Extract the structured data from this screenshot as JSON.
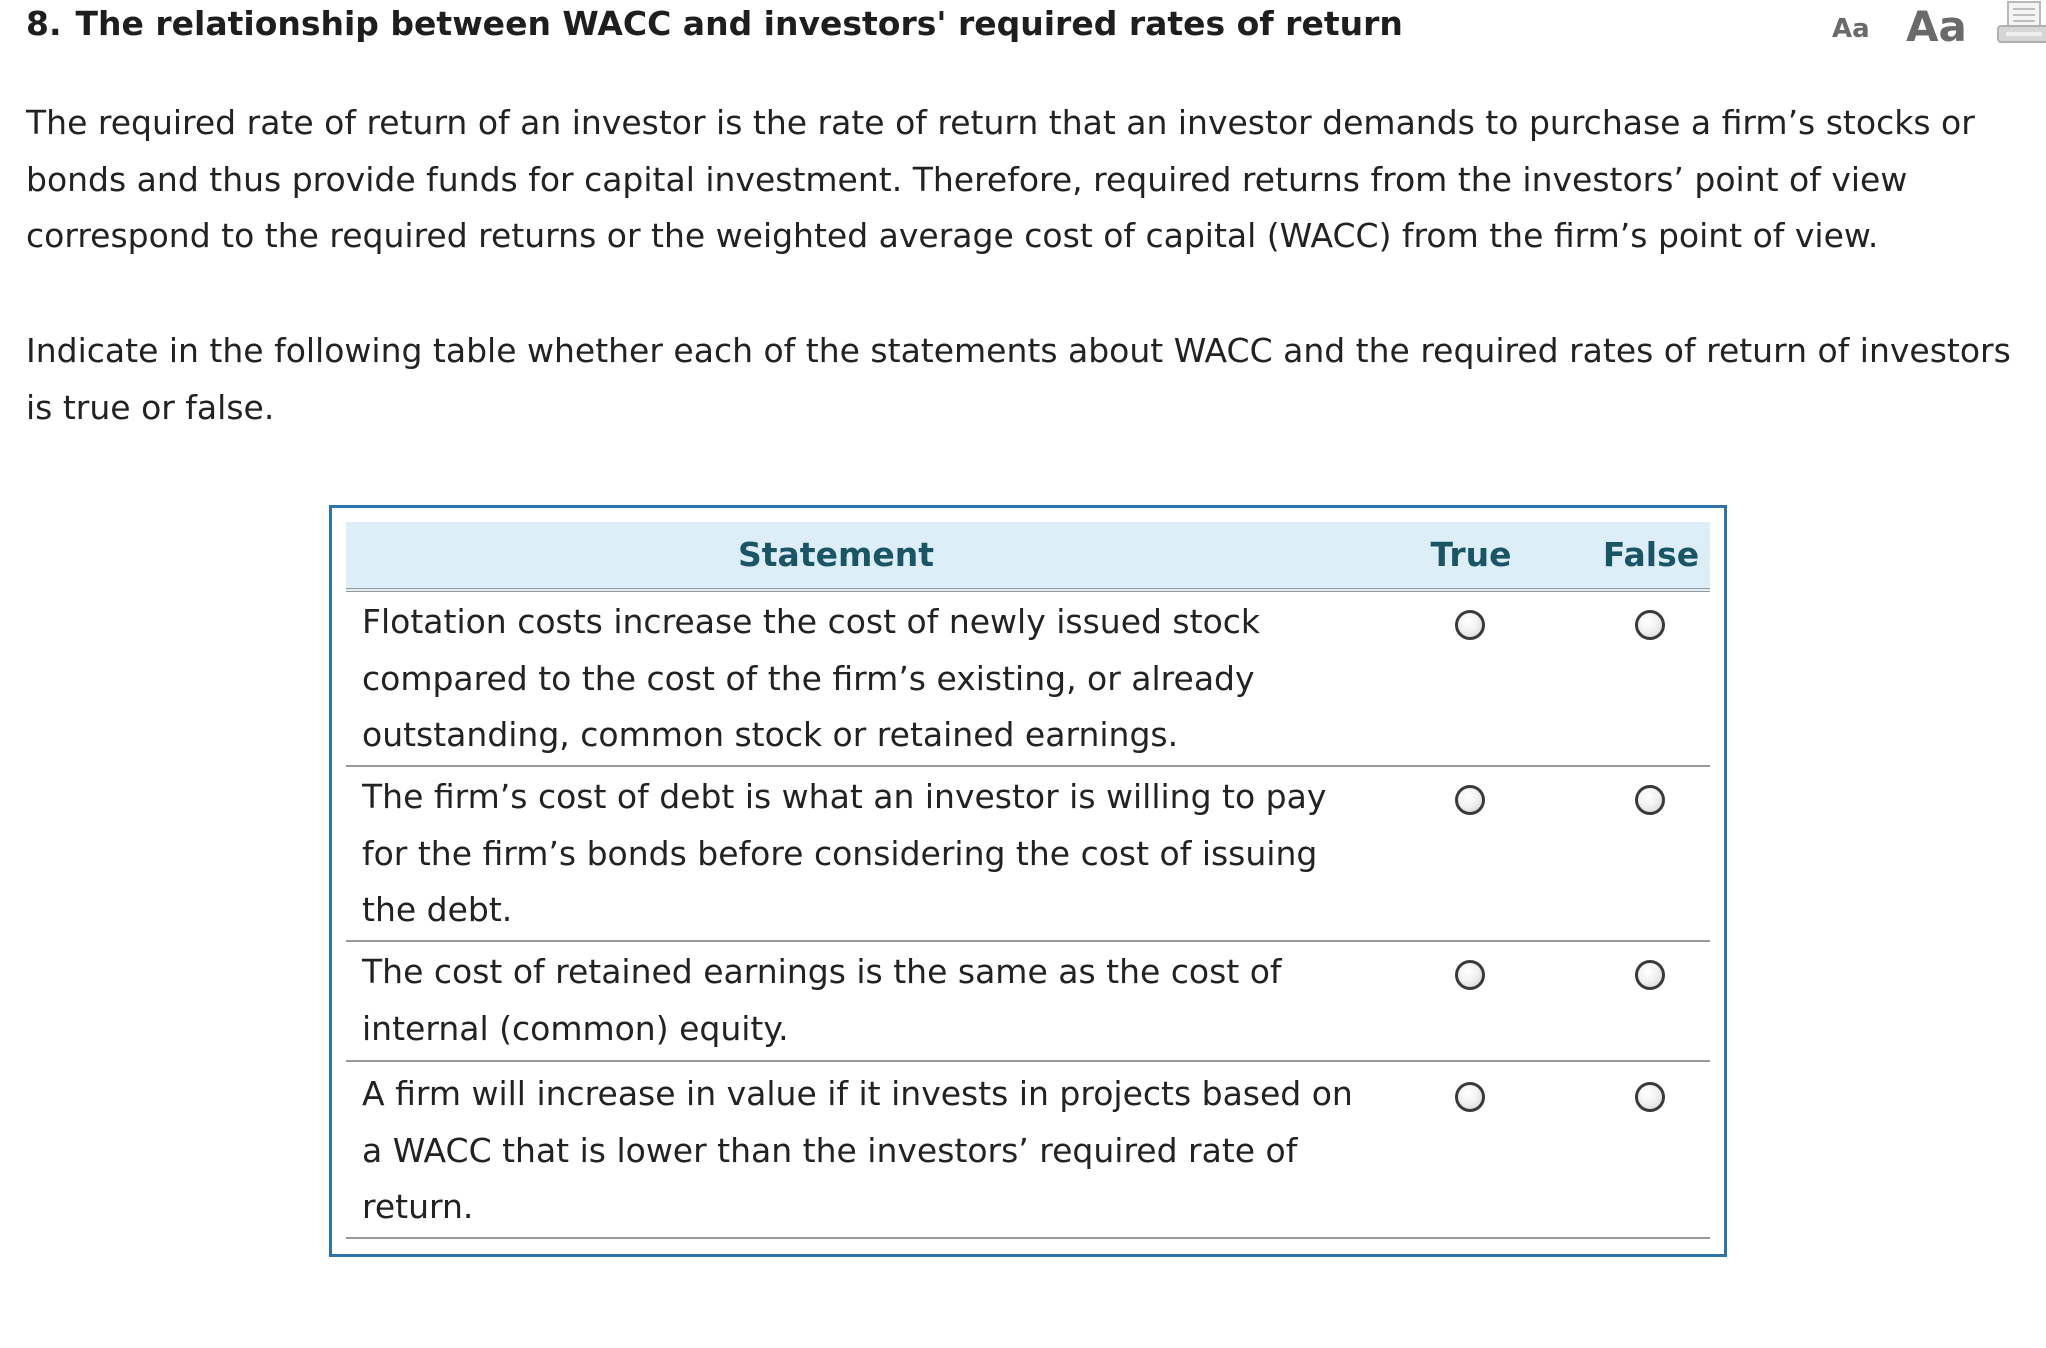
{
  "question": {
    "number": "8.",
    "title": "The relationship between WACC and investors' required rates of return"
  },
  "toolbar": {
    "text_small_label": "Aa",
    "text_large_label": "Aa",
    "print_icon": "print-icon"
  },
  "intro": "The required rate of return of an investor is the rate of return that an investor demands to purchase a firm’s stocks or bonds and thus provide funds for capital investment. Therefore, required returns from the investors’ point of view correspond to the required returns or the weighted average cost of capital (WACC) from the firm’s point of view.",
  "instruction": "Indicate in the following table whether each of the statements about WACC and the required rates of return of investors is true or false.",
  "table": {
    "headers": {
      "statement": "Statement",
      "true": "True",
      "false": "False"
    },
    "rows": [
      {
        "statement": "Flotation costs increase the cost of newly issued stock compared to the cost of the firm’s existing, or already outstanding, common stock or retained earnings.",
        "selected": null
      },
      {
        "statement": "The firm’s cost of debt is what an investor is willing to pay for the firm’s bonds before considering the cost of issuing the debt.",
        "selected": null
      },
      {
        "statement": "The cost of retained earnings is the same as the cost of internal (common) equity.",
        "selected": null
      },
      {
        "statement": "A firm will increase in value if it invests in projects based on a WACC that is lower than the investors’ required rate of return.",
        "selected": null
      }
    ]
  },
  "colors": {
    "table_border": "#2f73a8",
    "header_background": "#ddeef8",
    "header_text": "#1a5566",
    "body_text": "#222222"
  }
}
